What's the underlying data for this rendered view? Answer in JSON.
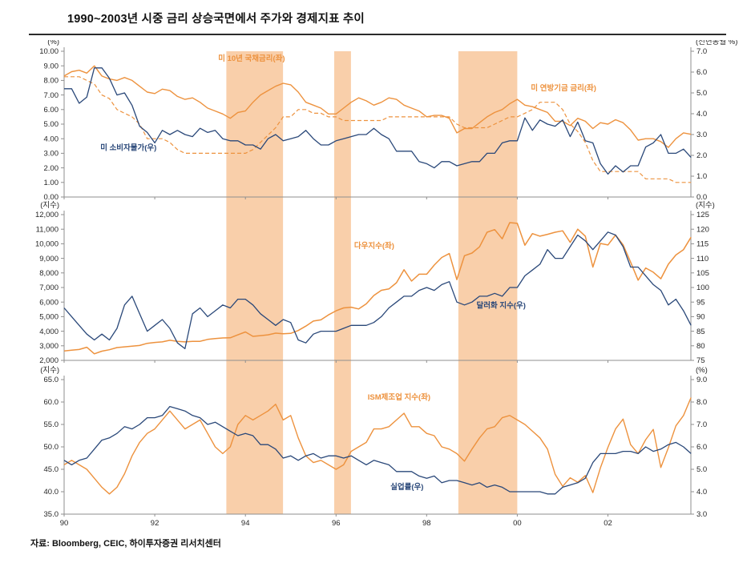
{
  "title": "1990~2003년 시중 금리 상승국면에서 주가와 경제지표 추이",
  "source": "자료: Bloomberg, CEIC, 하이투자증권 리서치센터",
  "colors": {
    "orange": "#ED923E",
    "navy": "#2A4879",
    "band": "#F8C79B",
    "axis": "#8F8F8F",
    "text": "#262626"
  },
  "chart_data": {
    "type": "line",
    "x": {
      "min": 1990,
      "max": 2003.83,
      "start": 1990,
      "step": 0.166667,
      "tick_positions": [
        1990,
        1992,
        1994,
        1996,
        1998,
        2000,
        2002
      ],
      "tick_labels": [
        "90",
        "92",
        "94",
        "96",
        "98",
        "00",
        "02"
      ]
    },
    "bands": [
      [
        1993.58,
        1994.83
      ],
      [
        1995.96,
        1996.33
      ],
      [
        1998.7,
        2000.0
      ]
    ],
    "panels": [
      {
        "left_axis": {
          "unit": "(%)",
          "min": 0,
          "max": 10,
          "ticks": [
            "0.00",
            "1.00",
            "2.00",
            "3.00",
            "4.00",
            "5.00",
            "6.00",
            "7.00",
            "8.00",
            "9.00",
            "10.00"
          ]
        },
        "right_axis": {
          "unit": "(전년동월 %)",
          "min": 0,
          "max": 7,
          "ticks": [
            "0.0",
            "1.0",
            "2.0",
            "3.0",
            "4.0",
            "5.0",
            "6.0",
            "7.0"
          ]
        },
        "series": [
          {
            "id": "us-10y-treasury",
            "name": "미 10년 국채금리(좌)",
            "axis": "left",
            "color": "orange",
            "dash": false,
            "width": 1.4,
            "values": [
              8.3,
              8.6,
              8.7,
              8.5,
              9.0,
              8.3,
              8.1,
              8.0,
              8.2,
              8.0,
              7.6,
              7.2,
              7.1,
              7.4,
              7.3,
              6.9,
              6.7,
              6.8,
              6.5,
              6.1,
              5.9,
              5.7,
              5.4,
              5.8,
              5.9,
              6.5,
              7.0,
              7.3,
              7.6,
              7.8,
              7.7,
              7.2,
              6.5,
              6.3,
              6.1,
              5.7,
              5.7,
              6.1,
              6.5,
              6.8,
              6.6,
              6.3,
              6.5,
              6.8,
              6.7,
              6.3,
              6.1,
              5.9,
              5.5,
              5.6,
              5.6,
              5.4,
              4.4,
              4.7,
              4.7,
              5.1,
              5.5,
              5.8,
              6.0,
              6.4,
              6.7,
              6.3,
              6.2,
              6.0,
              5.8,
              5.2,
              5.2,
              4.9,
              5.4,
              5.2,
              4.7,
              5.1,
              5.0,
              5.3,
              5.1,
              4.6,
              3.9,
              4.0,
              4.0,
              3.8,
              3.4,
              4.0,
              4.4,
              4.3
            ]
          },
          {
            "id": "fed-funds-rate",
            "name": "미 연방기금 금리(좌)",
            "axis": "left",
            "color": "orange",
            "dash": true,
            "width": 1.2,
            "values": [
              8.25,
              8.25,
              8.25,
              8.0,
              7.75,
              7.0,
              6.75,
              6.0,
              5.75,
              5.5,
              5.0,
              4.0,
              4.0,
              4.0,
              3.75,
              3.25,
              3.0,
              3.0,
              3.0,
              3.0,
              3.0,
              3.0,
              3.0,
              3.0,
              3.0,
              3.25,
              3.75,
              4.25,
              4.75,
              5.5,
              5.5,
              6.0,
              6.0,
              5.75,
              5.75,
              5.5,
              5.5,
              5.25,
              5.25,
              5.25,
              5.25,
              5.25,
              5.25,
              5.5,
              5.5,
              5.5,
              5.5,
              5.5,
              5.5,
              5.5,
              5.5,
              5.5,
              5.0,
              4.75,
              4.75,
              4.75,
              4.75,
              5.0,
              5.25,
              5.5,
              5.5,
              5.75,
              6.0,
              6.5,
              6.5,
              6.5,
              6.0,
              5.0,
              4.5,
              3.75,
              2.5,
              1.75,
              1.75,
              1.75,
              1.75,
              1.75,
              1.75,
              1.25,
              1.25,
              1.25,
              1.25,
              1.0,
              1.0,
              1.0
            ]
          },
          {
            "id": "us-cpi-yoy",
            "name": "미 소비자물가(우)",
            "axis": "right",
            "color": "navy",
            "dash": false,
            "width": 1.3,
            "values": [
              5.2,
              5.2,
              4.5,
              4.8,
              6.2,
              6.2,
              5.7,
              4.9,
              5.0,
              4.4,
              3.4,
              3.1,
              2.6,
              3.2,
              3.0,
              3.2,
              3.0,
              2.9,
              3.3,
              3.1,
              3.2,
              2.8,
              2.7,
              2.7,
              2.5,
              2.5,
              2.3,
              2.8,
              3.0,
              2.7,
              2.8,
              2.9,
              3.2,
              2.8,
              2.5,
              2.5,
              2.7,
              2.8,
              2.9,
              3.0,
              3.0,
              3.3,
              3.0,
              2.8,
              2.2,
              2.2,
              2.2,
              1.7,
              1.6,
              1.4,
              1.7,
              1.7,
              1.5,
              1.6,
              1.7,
              1.7,
              2.1,
              2.1,
              2.6,
              2.7,
              2.7,
              3.8,
              3.2,
              3.7,
              3.5,
              3.4,
              3.7,
              2.9,
              3.6,
              2.7,
              2.6,
              1.6,
              1.1,
              1.5,
              1.2,
              1.5,
              1.5,
              2.4,
              2.6,
              3.0,
              2.1,
              2.1,
              2.3,
              1.9
            ]
          }
        ],
        "labels": [
          {
            "text": "미 10년 국채금리(좌)",
            "x": 1993.4,
            "y": 9.35,
            "axis": "left",
            "color": "orange"
          },
          {
            "text": "미 연방기금 금리(좌)",
            "x": 2000.3,
            "y": 7.3,
            "axis": "left",
            "color": "orange"
          },
          {
            "text": "미 소비자물가(우)",
            "x": 1990.8,
            "y": 2.25,
            "axis": "right",
            "color": "navy"
          }
        ]
      },
      {
        "left_axis": {
          "unit": "(지수)",
          "min": 2000,
          "max": 12000,
          "ticks": [
            "2,000",
            "3,000",
            "4,000",
            "5,000",
            "6,000",
            "7,000",
            "8,000",
            "9,000",
            "10,000",
            "11,000",
            "12,000"
          ]
        },
        "right_axis": {
          "unit": "(지수)",
          "min": 75,
          "max": 125,
          "ticks": [
            "75",
            "80",
            "85",
            "90",
            "95",
            "100",
            "105",
            "110",
            "115",
            "120",
            "125"
          ]
        },
        "series": [
          {
            "id": "dow-jones-index",
            "name": "다우지수(좌)",
            "axis": "left",
            "color": "orange",
            "dash": false,
            "width": 1.5,
            "values": [
              2650,
              2700,
              2750,
              2900,
              2450,
              2630,
              2730,
              2880,
              2930,
              2980,
              3020,
              3170,
              3230,
              3270,
              3380,
              3310,
              3270,
              3300,
              3310,
              3440,
              3500,
              3540,
              3550,
              3750,
              3950,
              3650,
              3700,
              3750,
              3870,
              3830,
              3850,
              4050,
              4350,
              4700,
              4780,
              5120,
              5400,
              5600,
              5650,
              5530,
              5880,
              6450,
              6810,
              6900,
              7330,
              8220,
              7440,
              7910,
              7910,
              8540,
              9060,
              9330,
              7540,
              9180,
              9360,
              9790,
              10790,
              10970,
              10340,
              11450,
              11400,
              9900,
              10700,
              10520,
              10650,
              10790,
              10890,
              10100,
              11000,
              10520,
              8400,
              10020,
              9920,
              10600,
              9930,
              8740,
              7500,
              8340,
              8050,
              7600,
              8600,
              9230,
              9600,
              10450
            ]
          },
          {
            "id": "dollar-index",
            "name": "달러화 지수(우)",
            "axis": "right",
            "color": "navy",
            "dash": false,
            "width": 1.3,
            "values": [
              93,
              90,
              87,
              84,
              82,
              84,
              82,
              86,
              94,
              97,
              91,
              85,
              87,
              89,
              86,
              81,
              79,
              91,
              93,
              90,
              92,
              94,
              93,
              96,
              96,
              94,
              91,
              89,
              87,
              89,
              88,
              82,
              81,
              84,
              85,
              85,
              85,
              86,
              87,
              87,
              87,
              88,
              90,
              93,
              95,
              97,
              97,
              99,
              100,
              99,
              101,
              102,
              95,
              94,
              95,
              97,
              97,
              98,
              97,
              100,
              100,
              104,
              106,
              108,
              113,
              110,
              110,
              114,
              118,
              116,
              113,
              116,
              119,
              118,
              114,
              107,
              107,
              104,
              101,
              99,
              94,
              96,
              92,
              87
            ]
          }
        ],
        "labels": [
          {
            "text": "다우지수(좌)",
            "x": 1996.4,
            "y": 9700,
            "axis": "left",
            "color": "orange"
          },
          {
            "text": "달러화 지수(우)",
            "x": 1999.1,
            "y": 93,
            "axis": "right",
            "color": "navy"
          }
        ]
      },
      {
        "left_axis": {
          "unit": "(지수)",
          "min": 35,
          "max": 65,
          "ticks": [
            "35.0",
            "40.0",
            "45.0",
            "50.0",
            "55.0",
            "60.0",
            "65.0"
          ]
        },
        "right_axis": {
          "unit": "(%)",
          "min": 3,
          "max": 9,
          "ticks": [
            "3.0",
            "4.0",
            "5.0",
            "6.0",
            "7.0",
            "8.0",
            "9.0"
          ]
        },
        "series": [
          {
            "id": "ism-manufacturing",
            "name": "ISM제조업 지수(좌)",
            "axis": "left",
            "color": "orange",
            "dash": false,
            "width": 1.4,
            "values": [
              46,
              47,
              46,
              45,
              43,
              41,
              39.5,
              41,
              44,
              48,
              51,
              53,
              54,
              56,
              58,
              56,
              54,
              55,
              56,
              53,
              50,
              48.5,
              50,
              55,
              57,
              56,
              57,
              58,
              59.5,
              56,
              57,
              52,
              48,
              46.5,
              47,
              46,
              45,
              46,
              49,
              50,
              51,
              54,
              54,
              54.5,
              56,
              57.5,
              54.5,
              54.5,
              53,
              52.5,
              50,
              49.5,
              48.5,
              46.8,
              49.5,
              52,
              54,
              54.5,
              56.5,
              57,
              56,
              55,
              53.5,
              52,
              49.5,
              43.9,
              41.2,
              43.1,
              42.1,
              43.6,
              39.8,
              45.3,
              49.9,
              54,
              56.2,
              50.5,
              48.5,
              51.6,
              53.9,
              45.4,
              49.8,
              54.7,
              57,
              61
            ]
          },
          {
            "id": "unemployment-rate",
            "name": "실업률(우)",
            "axis": "right",
            "color": "navy",
            "dash": false,
            "width": 1.3,
            "values": [
              5.4,
              5.2,
              5.4,
              5.5,
              5.9,
              6.3,
              6.4,
              6.6,
              6.9,
              6.8,
              7.0,
              7.3,
              7.3,
              7.4,
              7.8,
              7.7,
              7.6,
              7.4,
              7.3,
              7.0,
              7.1,
              6.9,
              6.7,
              6.5,
              6.6,
              6.5,
              6.1,
              6.1,
              5.9,
              5.5,
              5.6,
              5.4,
              5.6,
              5.7,
              5.5,
              5.6,
              5.6,
              5.5,
              5.6,
              5.4,
              5.2,
              5.4,
              5.3,
              5.2,
              4.9,
              4.9,
              4.9,
              4.7,
              4.6,
              4.7,
              4.4,
              4.5,
              4.5,
              4.4,
              4.3,
              4.4,
              4.2,
              4.3,
              4.2,
              4.0,
              4.0,
              4.0,
              4.0,
              4.0,
              3.9,
              3.9,
              4.2,
              4.3,
              4.4,
              4.6,
              5.3,
              5.7,
              5.7,
              5.7,
              5.8,
              5.8,
              5.7,
              6.0,
              5.8,
              5.9,
              6.1,
              6.2,
              6.0,
              5.7
            ]
          }
        ],
        "labels": [
          {
            "text": "ISM제조업 지수(좌)",
            "x": 1996.7,
            "y": 60.5,
            "axis": "left",
            "color": "orange"
          },
          {
            "text": "실업률(우)",
            "x": 1997.2,
            "y": 4.1,
            "axis": "right",
            "color": "navy"
          }
        ]
      }
    ]
  }
}
